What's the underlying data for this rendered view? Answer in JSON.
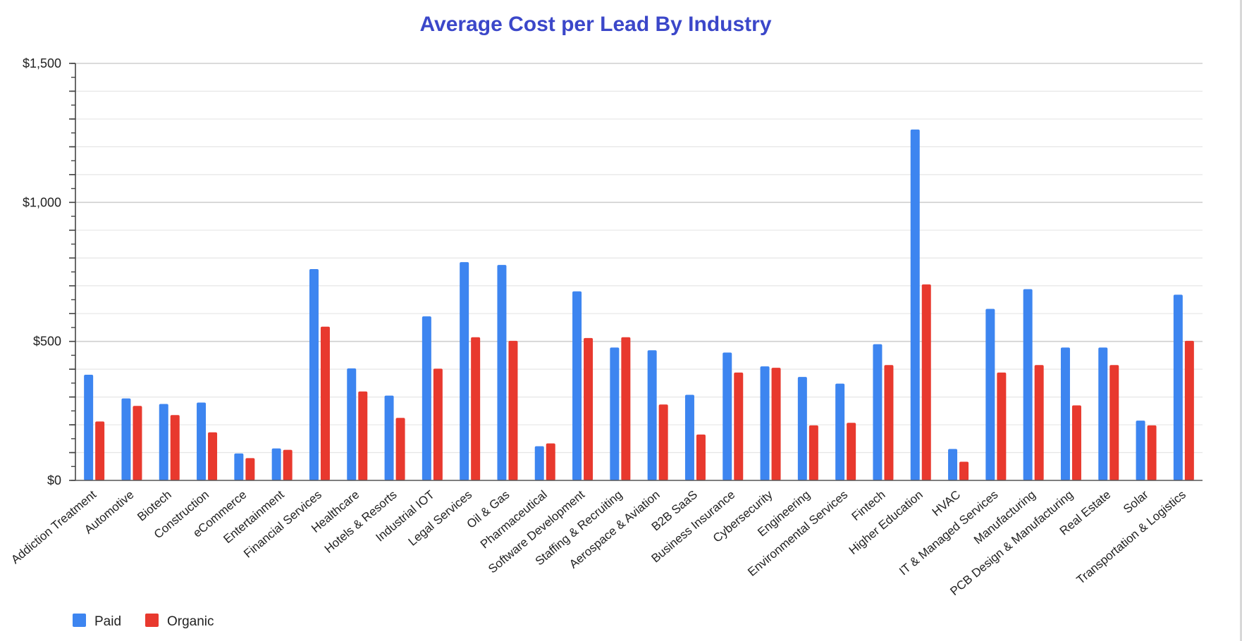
{
  "chart_data": {
    "type": "bar",
    "title": "Average Cost per Lead By Industry",
    "xlabel": "",
    "ylabel": "",
    "ylim": [
      0,
      1500
    ],
    "yticks": [
      {
        "value": 0,
        "label": "$0"
      },
      {
        "value": 500,
        "label": "$500"
      },
      {
        "value": 1000,
        "label": "$1,000"
      },
      {
        "value": 1500,
        "label": "$1,500"
      }
    ],
    "grid": true,
    "legend_position": "bottom-left",
    "categories": [
      "Addiction Treatment",
      "Automotive",
      "Biotech",
      "Construction",
      "eCommerce",
      "Entertainment",
      "Financial Services",
      "Healthcare",
      "Hotels & Resorts",
      "Industrial IOT",
      "Legal Services",
      "Oil & Gas",
      "Pharmaceutical",
      "Software Development",
      "Staffing & Recruiting",
      "Aerospace & Aviation",
      "B2B SaaS",
      "Business Insurance",
      "Cybersecurity",
      "Engineering",
      "Environmental Services",
      "Fintech",
      "Higher Education",
      "HVAC",
      "IT & Managed Services",
      "Manufacturing",
      "PCB Design & Manufacturing",
      "Real Estate",
      "Solar",
      "Transportation & Logistics"
    ],
    "series": [
      {
        "name": "Paid",
        "color": "#3d85f0",
        "values": [
          380,
          295,
          275,
          280,
          97,
          115,
          760,
          403,
          305,
          590,
          785,
          775,
          123,
          680,
          478,
          468,
          308,
          460,
          410,
          372,
          348,
          490,
          1262,
          113,
          617,
          688,
          478,
          478,
          215,
          668
        ]
      },
      {
        "name": "Organic",
        "color": "#e8392e",
        "values": [
          212,
          268,
          235,
          173,
          80,
          110,
          553,
          320,
          225,
          402,
          515,
          502,
          133,
          512,
          515,
          273,
          165,
          388,
          405,
          198,
          207,
          415,
          705,
          67,
          388,
          415,
          270,
          415,
          198,
          502
        ]
      }
    ]
  }
}
